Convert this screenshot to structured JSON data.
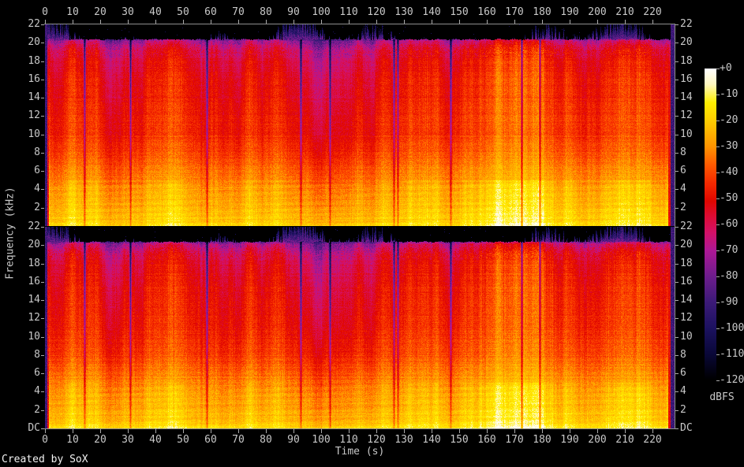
{
  "chart_data": {
    "type": "heatmap",
    "subtype": "audio-spectrogram",
    "title": "",
    "xlabel": "Time (s)",
    "ylabel": "Frequency (kHz)",
    "colorbar_label": "dBFS",
    "credit": "Created by SoX",
    "channels": 2,
    "x_range_s": [
      0,
      228
    ],
    "x_tick_seconds": [
      0,
      10,
      20,
      30,
      40,
      50,
      60,
      70,
      80,
      90,
      100,
      110,
      120,
      130,
      140,
      150,
      160,
      170,
      180,
      190,
      200,
      210,
      220
    ],
    "x_tick_labels": [
      "0",
      "10",
      "20",
      "30",
      "40",
      "50",
      "60",
      "70",
      "80",
      "90",
      "100",
      "110",
      "120",
      "130",
      "140",
      "150",
      "160",
      "170",
      "180",
      "190",
      "200",
      "210",
      "220"
    ],
    "y_range_khz": [
      0,
      22
    ],
    "y_tick_labels_channel1": [
      "22",
      "20",
      "18",
      "16",
      "14",
      "12",
      "10",
      "8",
      "6",
      "4",
      "2"
    ],
    "y_tick_labels_channel2": [
      "22",
      "20",
      "18",
      "16",
      "14",
      "12",
      "10",
      "8",
      "6",
      "4",
      "2",
      "DC"
    ],
    "colorbar_range_db": [
      0,
      -120
    ],
    "colorbar_tick_labels": [
      "+0",
      "-10",
      "-20",
      "-30",
      "-40",
      "-50",
      "-60",
      "-70",
      "-80",
      "-90",
      "-100",
      "-110",
      "-120"
    ],
    "colormap_stops_db_hex": [
      [
        0,
        "#ffffff"
      ],
      [
        -6,
        "#fff8c0"
      ],
      [
        -13,
        "#ffef00"
      ],
      [
        -21,
        "#ffc800"
      ],
      [
        -30,
        "#ff9400"
      ],
      [
        -37,
        "#ff5a00"
      ],
      [
        -44,
        "#f52a00"
      ],
      [
        -51,
        "#e00700"
      ],
      [
        -57,
        "#dc0c36"
      ],
      [
        -63,
        "#d41167"
      ],
      [
        -70,
        "#ae1896"
      ],
      [
        -80,
        "#6e1d8d"
      ],
      [
        -90,
        "#3c1a78"
      ],
      [
        -100,
        "#1c1260"
      ],
      [
        -110,
        "#0a0838"
      ],
      [
        -120,
        "#000000"
      ]
    ],
    "frequency_profile_db": [
      [
        0,
        -15
      ],
      [
        0.4,
        -19
      ],
      [
        1,
        -22
      ],
      [
        2,
        -24
      ],
      [
        3,
        -26
      ],
      [
        4,
        -28
      ],
      [
        5,
        -31
      ],
      [
        6,
        -34
      ],
      [
        7,
        -37
      ],
      [
        8,
        -40
      ],
      [
        9,
        -42
      ],
      [
        10,
        -44
      ],
      [
        12,
        -46
      ],
      [
        14,
        -48
      ],
      [
        16,
        -50
      ],
      [
        18,
        -53
      ],
      [
        19,
        -57
      ],
      [
        19.7,
        -62
      ],
      [
        20.1,
        -67
      ],
      [
        20.35,
        -76
      ],
      [
        20.6,
        -120
      ],
      [
        22,
        -120
      ]
    ],
    "lowpass_cutoff_khz": 20.45,
    "legend_position": "right"
  },
  "colors": {
    "background": "#000000",
    "axis_line": "#8e8e8e",
    "tick_mark": "#aaaaaa",
    "tick_label": "#c8c8c8",
    "credit_text": "#f2f2f2"
  }
}
